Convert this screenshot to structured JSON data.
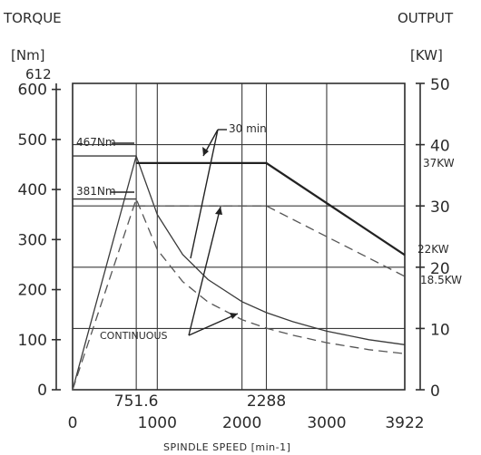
{
  "chart_data": {
    "type": "line",
    "left_title": "TORQUE",
    "left_unit": "[Nm]",
    "right_title": "OUTPUT",
    "right_unit": "[KW]",
    "xlabel": "SPINDLE SPEED [min-1]",
    "xlim": [
      0,
      3922
    ],
    "y_left_lim": [
      0,
      612
    ],
    "y_right_lim": [
      0,
      50
    ],
    "x_ticks": [
      "0",
      "1000",
      "2000",
      "3000",
      "3922"
    ],
    "x_special_ticks": [
      "751.6",
      "2288"
    ],
    "y_left_ticks": [
      "0",
      "100",
      "200",
      "300",
      "400",
      "500",
      "600"
    ],
    "y_left_top": "612",
    "y_right_ticks": [
      "0",
      "10",
      "20",
      "30",
      "40",
      "50"
    ],
    "grid": true,
    "series": [
      {
        "axis": "left",
        "style": "solid",
        "x": [
          0,
          751.6,
          1000,
          1300,
          1600,
          2000,
          2288,
          2600,
          3000,
          3500,
          3922
        ],
        "y": [
          0,
          467,
          350,
          270,
          220,
          176,
          154,
          136,
          117,
          100,
          90
        ]
      },
      {
        "axis": "left",
        "style": "dashed",
        "x": [
          0,
          751.6,
          1000,
          1300,
          1600,
          2000,
          2288,
          2600,
          3000,
          3500,
          3922
        ],
        "y": [
          0,
          381,
          280,
          216,
          175,
          140,
          123,
          109,
          94,
          80,
          72
        ]
      },
      {
        "axis": "right",
        "style": "solid",
        "x": [
          751.6,
          2288,
          3922
        ],
        "y": [
          37,
          37,
          22
        ]
      },
      {
        "axis": "right",
        "style": "dashed",
        "x": [
          751.6,
          2288,
          3922
        ],
        "y": [
          30,
          30,
          18.5
        ]
      }
    ],
    "annotations": {
      "torque_30min": "467Nm",
      "torque_continuous": "381Nm",
      "label_30min": "30 min",
      "label_continuous": "CONTINUOUS",
      "output_30min": "37KW",
      "output_30min_end": "22KW",
      "output_continuous_end": "18.5KW"
    }
  }
}
